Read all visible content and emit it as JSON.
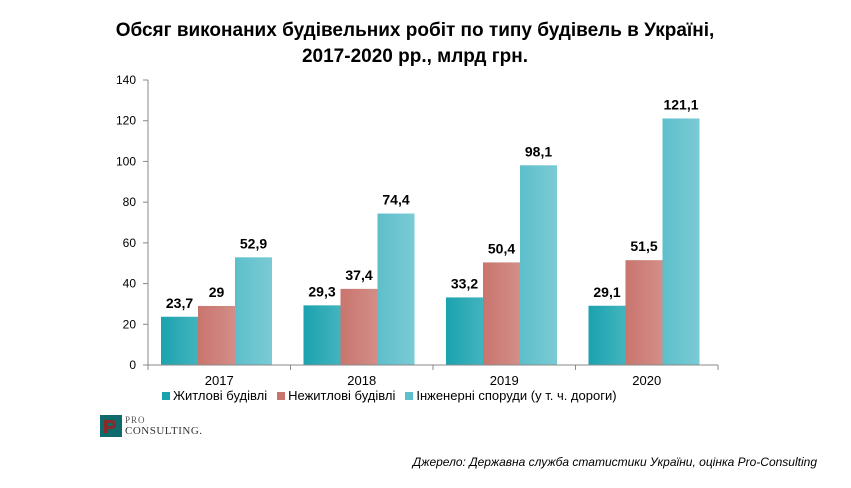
{
  "title_lines": [
    "Обсяг виконаних будівельних робіт по типу будівель в Україні,",
    "2017-2020 рр., млрд грн."
  ],
  "chart_data": {
    "type": "bar",
    "title": "Обсяг виконаних будівельних робіт по типу будівель в Україні, 2017-2020 рр., млрд грн.",
    "categories": [
      "2017",
      "2018",
      "2019",
      "2020"
    ],
    "series": [
      {
        "name": "Житлові будівлі",
        "values": [
          23.7,
          29.3,
          33.2,
          29.1
        ],
        "labels": [
          "23,7",
          "29,3",
          "33,2",
          "29,1"
        ],
        "color": "#1AA3AF"
      },
      {
        "name": "Нежитлові будівлі",
        "values": [
          29,
          37.4,
          50.4,
          51.5
        ],
        "labels": [
          "29",
          "37,4",
          "50,4",
          "51,5"
        ],
        "color": "#C9756E"
      },
      {
        "name": "Інженерні споруди (у т. ч. дороги)",
        "values": [
          52.9,
          74.4,
          98.1,
          121.1
        ],
        "labels": [
          "52,9",
          "74,4",
          "98,1",
          "121,1"
        ],
        "color": "#5DBFCB"
      }
    ],
    "yticks": [
      "0",
      "20",
      "40",
      "60",
      "80",
      "100",
      "120",
      "140"
    ],
    "ylim": [
      0,
      140
    ],
    "legend_position": "bottom",
    "grid": false
  },
  "logo": {
    "line1": "PRO",
    "line2": "CONSULTING."
  },
  "source": "Джерело: Державна служба статистики України, оцінка Pro-Consulting"
}
